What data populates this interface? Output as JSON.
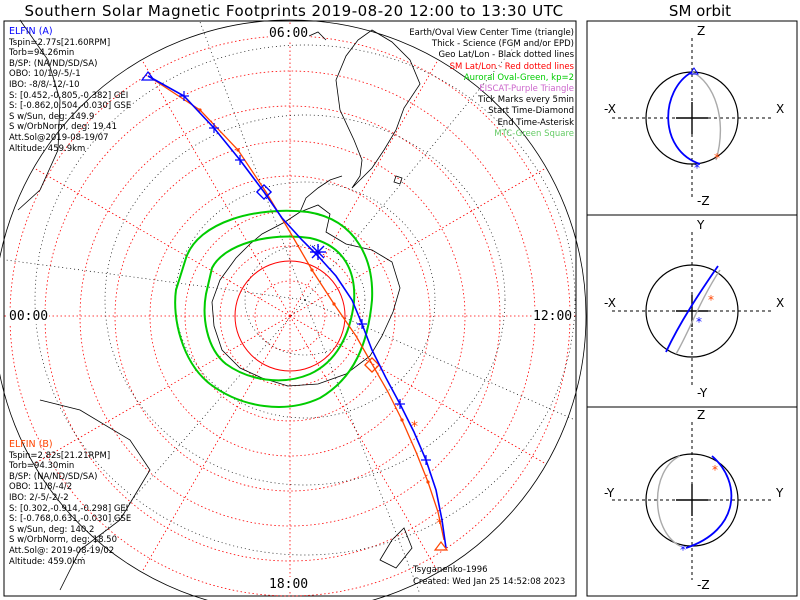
{
  "title": "Southern Solar Magnetic Footprints 2019-08-20 12:00 to 13:30 UTC",
  "sm_orbit_title": "SM orbit",
  "clock_labels": {
    "top": "06:00",
    "left": "00:00",
    "right": "12:00",
    "bottom": "18:00"
  },
  "legend": [
    {
      "text": "Earth/Oval View Center Time (triangle)",
      "color": "#000000"
    },
    {
      "text": "Thick - Science (FGM and/or EPD)",
      "color": "#000000"
    },
    {
      "text": "Geo Lat/Lon - Black dotted lines",
      "color": "#000000"
    },
    {
      "text": "SM Lat/Lon - Red dotted lines",
      "color": "#ff0000"
    },
    {
      "text": "Auroral Oval-Green, kp=2",
      "color": "#00cc00"
    },
    {
      "text": "EISCAT-Purple Triangle",
      "color": "#cc66cc"
    },
    {
      "text": "Tick Marks every 5min",
      "color": "#000000"
    },
    {
      "text": "Start Time-Diamond",
      "color": "#000000"
    },
    {
      "text": "End Time-Asterisk",
      "color": "#000000"
    },
    {
      "text": "MTC-Green Square",
      "color": "#66cc66"
    }
  ],
  "probe_a": {
    "color": "#0000ff",
    "lines": [
      "ELFIN (A)",
      "Tspin=2.77s[21.60RPM]",
      "Torb=94.26min",
      "B/SP: (NA/ND/SD/SA)",
      "OBO: 10/19/-5/-1",
      "IBO: -8/8/-12/-10",
      "S: [0.452,-0.805,-0.382] GEI",
      "S: [-0.862,0.504,-0.030] GSE",
      "S w/Sun, deg: 149.9",
      "S w/OrbNorm, deg: 19.41",
      "Att.Sol@2019-08-19/07",
      "Altitude: 459.9km"
    ]
  },
  "probe_b": {
    "color": "#ff4400",
    "lines": [
      "ELFIN (B)",
      "Tspin=2.82s[21.21RPM]",
      "Torb=94.30min",
      "B/SP: (NA/ND/SD/SA)",
      "OBO: 11/8/-4/2",
      "IBO: 2/-5/-2/-2",
      "S: [0.302,-0.914,-0.298] GEI",
      "S: [-0.768,0.631,-0.030] GSE",
      "S w/Sun, deg: 140.2",
      "S w/OrbNorm, deg: 18.50",
      "Att.Sol@: 2019-08-19/02",
      "Altitude: 459.0km"
    ]
  },
  "credits": {
    "author": "Tsyganenko-1996",
    "created": "Created: Wed Jan 25 14:52:08 2023"
  },
  "orbit_panels": [
    {
      "name": "xz",
      "top": "Z",
      "bottom": "-Z",
      "left": "-X",
      "right": "X"
    },
    {
      "name": "xy",
      "top": "Y",
      "bottom": "-Y",
      "left": "-X",
      "right": "X"
    },
    {
      "name": "yz",
      "top": "Z",
      "bottom": "-Z",
      "left": "-Y",
      "right": "Y"
    }
  ],
  "colors": {
    "probe_a": "#0000ff",
    "probe_b": "#ff4400",
    "oval": "#00cc00",
    "sm_grid": "#ff0000"
  }
}
